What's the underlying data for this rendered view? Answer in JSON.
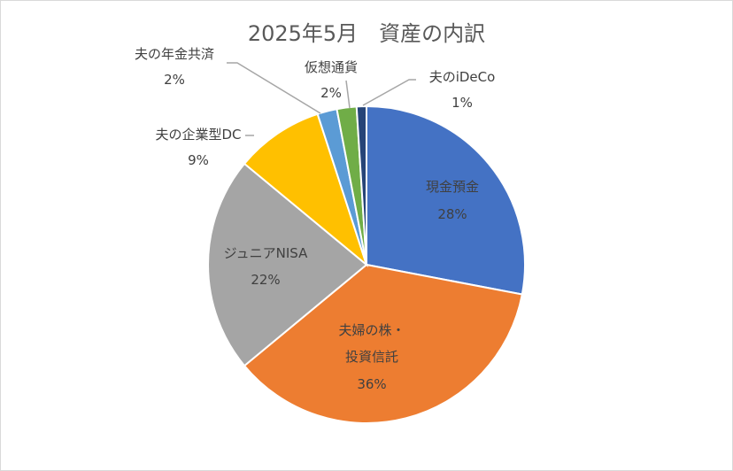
{
  "chart_data": {
    "type": "pie",
    "title": "2025年5月　資産の内訳",
    "categories": [
      "現金預金",
      "夫婦の株・投資信託",
      "ジュニアNISA",
      "夫の企業型DC",
      "夫の年金共済",
      "仮想通貨",
      "夫のiDeCo"
    ],
    "values": [
      28,
      36,
      22,
      9,
      2,
      2,
      1
    ],
    "labels": [
      "28%",
      "36%",
      "22%",
      "9%",
      "2%",
      "2%",
      "1%"
    ],
    "colors": [
      "#4472C4",
      "#ED7D31",
      "#A5A5A5",
      "#FFC000",
      "#5B9BD5",
      "#70AD47",
      "#264478"
    ],
    "legend": "none",
    "start_angle": "12 o'clock, clockwise"
  }
}
